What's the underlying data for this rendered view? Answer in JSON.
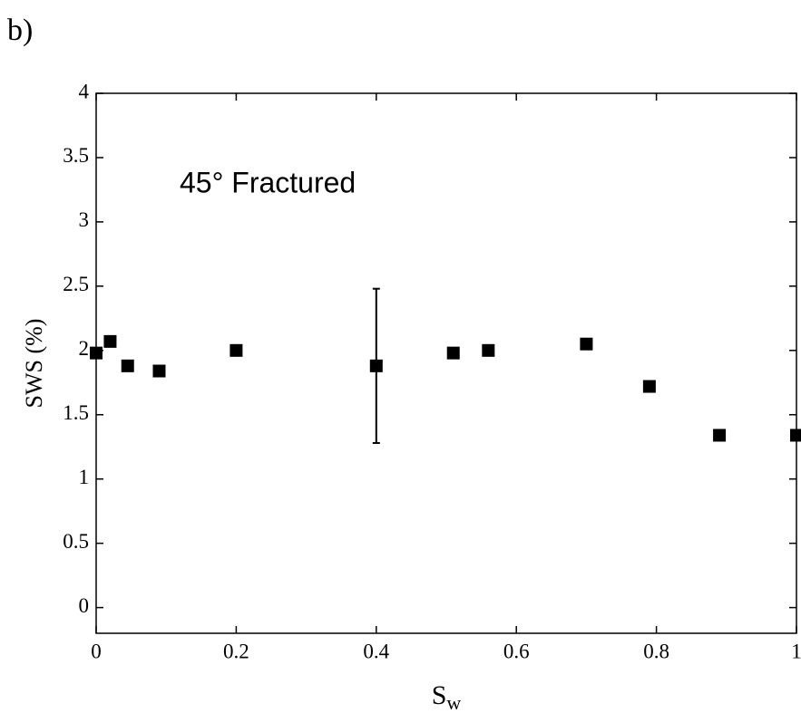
{
  "panel_label": "b)",
  "chart_data": {
    "type": "scatter",
    "annotation": "45° Fractured",
    "xlabel": "S",
    "xlabel_subscript": "w",
    "ylabel": "SWS (%)",
    "xlim": [
      0,
      1
    ],
    "ylim": [
      -0.2,
      4
    ],
    "xticks": [
      0,
      0.2,
      0.4,
      0.6,
      0.8,
      1
    ],
    "yticks": [
      0,
      0.5,
      1,
      1.5,
      2,
      2.5,
      3,
      3.5,
      4
    ],
    "grid": false,
    "series": [
      {
        "color": "#000000",
        "x": [
          0,
          0.02,
          0.045,
          0.09,
          0.2,
          0.4,
          0.51,
          0.56,
          0.7,
          0.79,
          0.89,
          1.0
        ],
        "values": [
          1.98,
          2.07,
          1.88,
          1.84,
          2.0,
          1.88,
          1.98,
          2.0,
          2.05,
          1.72,
          1.34,
          1.34
        ],
        "errors": [
          null,
          null,
          null,
          null,
          null,
          0.6,
          null,
          null,
          null,
          null,
          null,
          null
        ]
      }
    ]
  }
}
